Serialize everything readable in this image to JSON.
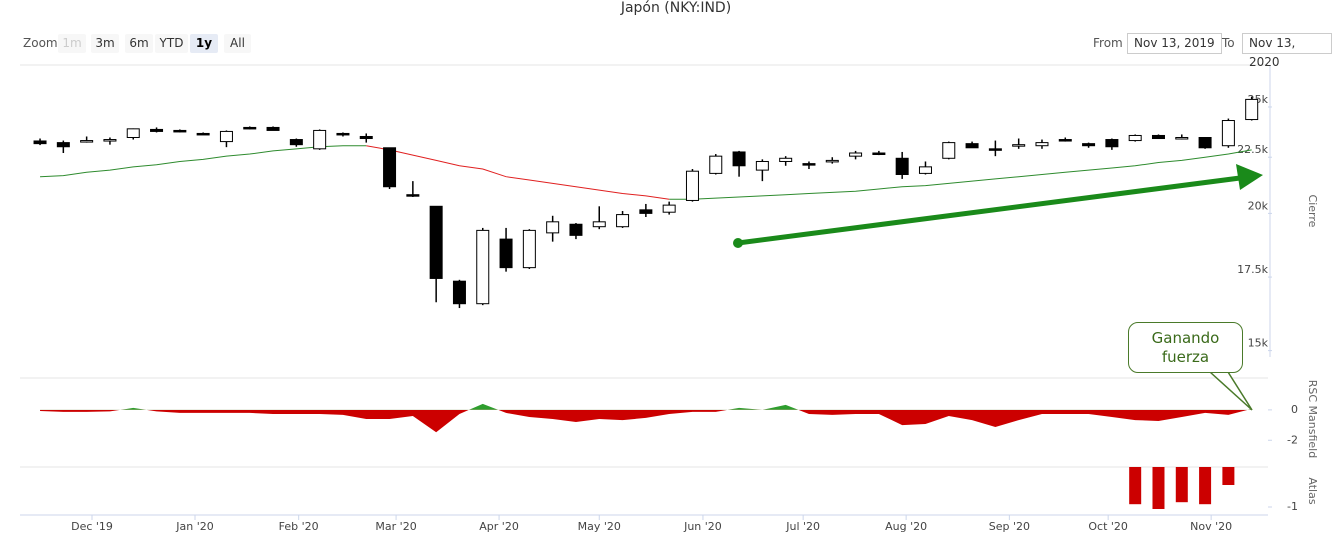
{
  "ui": {
    "zoom_label": "Zoom",
    "zoom_buttons": [
      {
        "label": "1m",
        "state": "disabled"
      },
      {
        "label": "3m",
        "state": "normal"
      },
      {
        "label": "6m",
        "state": "normal"
      },
      {
        "label": "YTD",
        "state": "normal"
      },
      {
        "label": "1y",
        "state": "selected"
      },
      {
        "label": "All",
        "state": "normal"
      }
    ],
    "from_label": "From",
    "from": "Nov 13, 2019",
    "to_label": "To",
    "to": "Nov 13, 2020"
  },
  "chart_data": [
    {
      "type": "candlestick",
      "title": "Japón (NKY:IND)",
      "y_label": "Cierre",
      "log": true,
      "xlim": [
        -0.86,
        52.7
      ],
      "ylim": [
        14800,
        27300
      ],
      "yticks": [
        {
          "value": 15000,
          "label": "15k"
        },
        {
          "value": 17500,
          "label": "17.5k"
        },
        {
          "value": 20000,
          "label": "20k"
        },
        {
          "value": 22500,
          "label": "22.5k"
        },
        {
          "value": 25000,
          "label": "25k"
        }
      ],
      "up_color": "#ffffff",
      "down_color": "#000000",
      "open": [
        23280,
        23200,
        23280,
        23300,
        23450,
        23850,
        23800,
        23650,
        23250,
        23950,
        23950,
        23350,
        22900,
        23650,
        23500,
        22950,
        20800,
        20300,
        17350,
        16550,
        18950,
        17850,
        19200,
        19550,
        19450,
        19450,
        20150,
        20050,
        20550,
        21750,
        22750,
        21900,
        22300,
        22200,
        22300,
        22550,
        22700,
        22450,
        21750,
        22450,
        23150,
        22900,
        23050,
        23050,
        23350,
        23150,
        23350,
        23300,
        23550,
        23450,
        23450,
        23050,
        24350
      ],
      "high": [
        23400,
        23300,
        23500,
        23450,
        23900,
        23950,
        23850,
        23700,
        23800,
        24000,
        24000,
        23400,
        23850,
        23700,
        23650,
        22950,
        21400,
        20300,
        17400,
        19400,
        19400,
        19350,
        19900,
        19600,
        20300,
        20100,
        20400,
        20500,
        21950,
        22650,
        22800,
        22400,
        22550,
        22300,
        22500,
        22800,
        22800,
        22750,
        22300,
        23250,
        23250,
        23300,
        23400,
        23350,
        23450,
        23200,
        23400,
        23600,
        23600,
        23600,
        23450,
        24400,
        25550
      ],
      "low": [
        23080,
        22700,
        23200,
        23100,
        23350,
        23700,
        23700,
        23600,
        22980,
        23850,
        23800,
        23000,
        22850,
        23500,
        23200,
        21050,
        20700,
        16600,
        16400,
        16500,
        17700,
        17800,
        18850,
        18950,
        19350,
        19400,
        19850,
        19950,
        20500,
        21700,
        21600,
        21400,
        22100,
        21950,
        22200,
        22400,
        22600,
        21500,
        21700,
        22400,
        22950,
        22550,
        22900,
        22900,
        23250,
        22950,
        22850,
        23250,
        23400,
        23350,
        22900,
        22950,
        24300
      ],
      "close": [
        23150,
        23000,
        23300,
        23350,
        23880,
        23750,
        23750,
        23600,
        23750,
        23900,
        23800,
        23100,
        23800,
        23600,
        23400,
        21150,
        20750,
        17450,
        16550,
        19300,
        17850,
        19300,
        19650,
        19100,
        19650,
        19950,
        20000,
        20350,
        21850,
        22550,
        22100,
        22300,
        22450,
        22150,
        22350,
        22700,
        22650,
        21700,
        22050,
        23200,
        22950,
        22850,
        23100,
        23200,
        23300,
        23050,
        23000,
        23550,
        23400,
        23450,
        22950,
        24300,
        25400
      ],
      "lines": [
        {
          "color": "#2e8b2e",
          "values": [
            21600,
            21650,
            21800,
            21900,
            22050,
            22150,
            22300,
            22400,
            22550,
            22650,
            22800,
            22900,
            23000,
            23050,
            23050,
            null,
            null,
            null,
            null,
            null,
            null,
            null,
            null,
            null,
            null,
            null,
            null,
            20600,
            20600,
            20650,
            20700,
            20750,
            20800,
            20850,
            20900,
            20950,
            21050,
            21150,
            21200,
            21300,
            21400,
            21500,
            21600,
            21700,
            21800,
            21900,
            22000,
            22100,
            22250,
            22350,
            22500,
            22650,
            22850
          ]
        },
        {
          "color": "#e02020",
          "values": [
            null,
            null,
            null,
            null,
            null,
            null,
            null,
            null,
            null,
            null,
            null,
            null,
            null,
            null,
            23050,
            22850,
            22600,
            22350,
            22100,
            21950,
            21600,
            21450,
            21300,
            21150,
            21000,
            20850,
            20750,
            20600,
            null,
            null,
            null,
            null,
            null,
            null,
            null,
            null,
            null,
            null,
            null,
            null,
            null,
            null,
            null,
            null,
            null,
            null,
            null,
            null,
            null,
            null,
            null,
            null,
            null
          ]
        }
      ]
    },
    {
      "type": "area",
      "y_label": "RSC Mansfield",
      "annotation": "Ganando fuerza",
      "xlim": [
        -0.86,
        52.7
      ],
      "ylim": [
        -3.3,
        2.1
      ],
      "yticks": [
        0,
        -2
      ],
      "pos_color": "#2e9e2e",
      "neg_color": "#cc0000",
      "values": [
        -0.07,
        -0.13,
        -0.13,
        -0.1,
        0.13,
        -0.1,
        -0.2,
        -0.2,
        -0.2,
        -0.2,
        -0.27,
        -0.27,
        -0.27,
        -0.33,
        -0.6,
        -0.6,
        -0.4,
        -1.47,
        -0.27,
        0.4,
        -0.2,
        -0.47,
        -0.6,
        -0.8,
        -0.6,
        -0.67,
        -0.53,
        -0.27,
        -0.13,
        -0.13,
        0.13,
        0,
        0.33,
        -0.27,
        -0.33,
        -0.27,
        -0.27,
        -1.0,
        -0.93,
        -0.4,
        -0.67,
        -1.13,
        -0.67,
        -0.27,
        -0.27,
        -0.27,
        -0.47,
        -0.67,
        -0.73,
        -0.47,
        -0.2,
        -0.33,
        0.07
      ]
    },
    {
      "type": "bar",
      "y_label": "Atlas",
      "color": "#cc0000",
      "xlim": [
        -0.86,
        52.7
      ],
      "ylim": [
        -1.2,
        0
      ],
      "yticks": [
        -1
      ],
      "xticks": [
        {
          "value": 2.23,
          "label": "Dec '19"
        },
        {
          "value": 6.65,
          "label": "Jan '20"
        },
        {
          "value": 11.1,
          "label": "Feb '20"
        },
        {
          "value": 15.28,
          "label": "Mar '20"
        },
        {
          "value": 19.7,
          "label": "Apr '20"
        },
        {
          "value": 24.0,
          "label": "May '20"
        },
        {
          "value": 28.45,
          "label": "Jun '20"
        },
        {
          "value": 32.75,
          "label": "Jul '20"
        },
        {
          "value": 37.17,
          "label": "Aug '20"
        },
        {
          "value": 41.6,
          "label": "Sep '20"
        },
        {
          "value": 45.84,
          "label": "Oct '20"
        },
        {
          "value": 50.26,
          "label": "Nov '20"
        }
      ],
      "values": [
        null,
        null,
        null,
        null,
        null,
        null,
        null,
        null,
        null,
        null,
        null,
        null,
        null,
        null,
        null,
        null,
        null,
        null,
        null,
        null,
        null,
        null,
        null,
        null,
        null,
        null,
        null,
        null,
        null,
        null,
        null,
        null,
        null,
        null,
        null,
        null,
        null,
        null,
        null,
        null,
        null,
        null,
        null,
        null,
        null,
        null,
        null,
        -0.93,
        -1.05,
        -0.88,
        -0.93,
        -0.45,
        null
      ]
    }
  ]
}
